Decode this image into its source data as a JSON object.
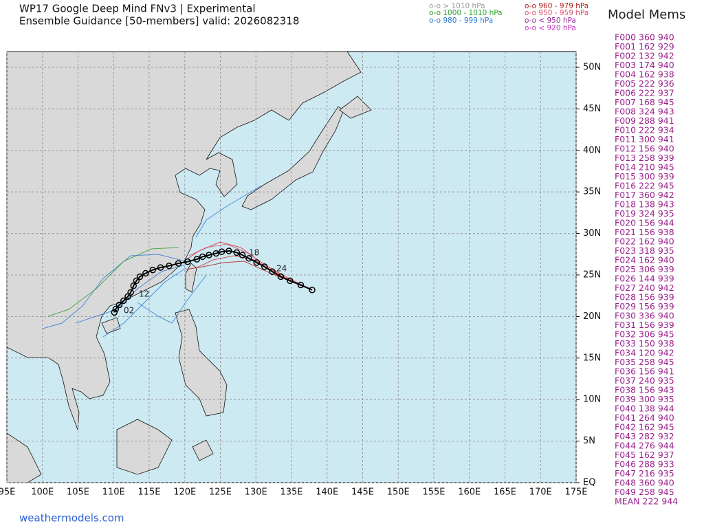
{
  "header": {
    "title": "WP17 Google Deep Mind FNv3 | Experimental",
    "subtitle": "Ensemble Guidance [50-members] valid: 2026082318"
  },
  "legend": [
    {
      "label": "o-o > 1010 hPa",
      "color": "#9a9a9a"
    },
    {
      "label": "o-o 1000 - 1010 hPa",
      "color": "#2ca02c"
    },
    {
      "label": "o-o 980 - 999 hPa",
      "color": "#2a78d6"
    },
    {
      "label": "o-o 960 - 979 hPa",
      "color": "#b01818"
    },
    {
      "label": "o-o 950 - 959 hPa",
      "color": "#e0506a"
    },
    {
      "label": "o-o < 950 hPa",
      "color": "#9c2a9c"
    },
    {
      "label": "o-o < 920 hPa",
      "color": "#d030c8"
    }
  ],
  "members": {
    "title": "Model Mems",
    "color": "#9c1f8c",
    "rows": [
      "F000 360 940",
      "F001 162 929",
      "F002 132 942",
      "F003 174 940",
      "F004 162 938",
      "F005 222 936",
      "F006 222 937",
      "F007 168 945",
      "F008 324 943",
      "F009 288 941",
      "F010 222 934",
      "F011 300 941",
      "F012 156 940",
      "F013 258 939",
      "F014 210 945",
      "F015 300 939",
      "F016 222 945",
      "F017 360 942",
      "F018 138 943",
      "F019 324 935",
      "F020 156 944",
      "F021 156 938",
      "F022 162 940",
      "F023 318 935",
      "F024 162 940",
      "F025 306 939",
      "F026 144 939",
      "F027 240 942",
      "F028 156 939",
      "F029 156 939",
      "F030 336 940",
      "F031 156 939",
      "F032 306 945",
      "F033 150 938",
      "F034 120 942",
      "F035 258 945",
      "F036 156 941",
      "F037 240 935",
      "F038 156 943",
      "F039 300 935",
      "F040 138 944",
      "F041 264 940",
      "F042 162 945",
      "F043 282 932",
      "F044 276 944",
      "F045 162 937",
      "F046 288 933",
      "F047 216 935",
      "F048 360 940",
      "F049 258 945",
      "MEAN 222 944"
    ]
  },
  "map": {
    "lonlim": [
      95,
      175
    ],
    "latlim": [
      0,
      51.9
    ],
    "lon_ticks": [
      {
        "value": 95,
        "label": "95E"
      },
      {
        "value": 100,
        "label": "100E"
      },
      {
        "value": 105,
        "label": "105E"
      },
      {
        "value": 110,
        "label": "110E"
      },
      {
        "value": 115,
        "label": "115E"
      },
      {
        "value": 120,
        "label": "120E"
      },
      {
        "value": 125,
        "label": "125E"
      },
      {
        "value": 130,
        "label": "130E"
      },
      {
        "value": 135,
        "label": "135E"
      },
      {
        "value": 140,
        "label": "140E"
      },
      {
        "value": 145,
        "label": "145E"
      },
      {
        "value": 150,
        "label": "150E"
      },
      {
        "value": 155,
        "label": "155E"
      },
      {
        "value": 160,
        "label": "160E"
      },
      {
        "value": 165,
        "label": "165E"
      },
      {
        "value": 170,
        "label": "170E"
      },
      {
        "value": 175,
        "label": "175E"
      }
    ],
    "lat_ticks": [
      {
        "value": 50,
        "label": "50N"
      },
      {
        "value": 45,
        "label": "45N"
      },
      {
        "value": 40,
        "label": "40N"
      },
      {
        "value": 35,
        "label": "35N"
      },
      {
        "value": 30,
        "label": "30N"
      },
      {
        "value": 25,
        "label": "25N"
      },
      {
        "value": 20,
        "label": "20N"
      },
      {
        "value": 15,
        "label": "15N"
      },
      {
        "value": 10,
        "label": "10N"
      },
      {
        "value": 5,
        "label": "5N"
      },
      {
        "value": 0,
        "label": "EQ"
      }
    ],
    "grid": true,
    "mean_track": {
      "color": "#000000",
      "lon": [
        137.9,
        136.3,
        134.8,
        133.5,
        132.3,
        131.2,
        130.1,
        129.0,
        128.1,
        127.3,
        126.2,
        125.2,
        124.4,
        123.4,
        122.5,
        121.7,
        120.4,
        119.1,
        117.8,
        116.6,
        115.5,
        114.5,
        113.7,
        113.2,
        112.8,
        112.4,
        112.0,
        111.4,
        110.8,
        110.3,
        110.1
      ],
      "lat": [
        23.2,
        23.8,
        24.3,
        24.8,
        25.4,
        26.0,
        26.5,
        27.0,
        27.4,
        27.7,
        27.9,
        27.8,
        27.6,
        27.4,
        27.2,
        26.9,
        26.6,
        26.4,
        26.1,
        25.9,
        25.6,
        25.2,
        24.8,
        24.3,
        23.7,
        22.9,
        22.4,
        21.9,
        21.4,
        20.9,
        20.5
      ]
    },
    "track_labels": [
      "24",
      "18",
      "12",
      "02"
    ]
  },
  "footer": "weathermodels.com"
}
